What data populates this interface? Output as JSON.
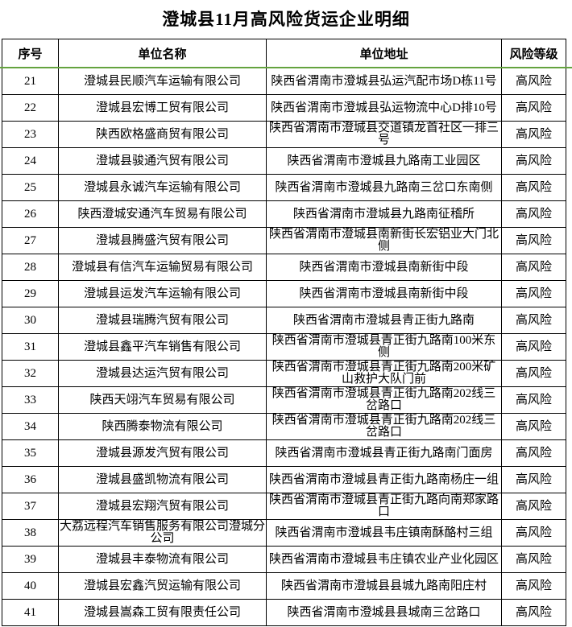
{
  "page": {
    "title": "澄城县11月高风险货运企业明细"
  },
  "colors": {
    "border": "#000000",
    "text": "#000000",
    "background": "#ffffff",
    "pane_divider_green": "#64a33e"
  },
  "table": {
    "headers": {
      "no": "序号",
      "name": "单位名称",
      "addr": "单位地址",
      "risk": "风险等级"
    },
    "rows": [
      {
        "no": "21",
        "name": "澄城县民顺汽车运输有限公司",
        "addr": "陕西省渭南市澄城县弘运汽配市场D栋11号",
        "risk": "高风险"
      },
      {
        "no": "22",
        "name": "澄城县宏博工贸有限公司",
        "addr": "陕西省渭南市澄城县弘运物流中心D排10号",
        "risk": "高风险"
      },
      {
        "no": "23",
        "name": "陕西欧格盛商贸有限公司",
        "addr": "陕西省渭南市澄城县交道镇龙首社区一排三号",
        "risk": "高风险"
      },
      {
        "no": "24",
        "name": "澄城县骏通汽贸有限公司",
        "addr": "陕西省渭南市澄城县九路南工业园区",
        "risk": "高风险"
      },
      {
        "no": "25",
        "name": "澄城县永诚汽车运输有限公司",
        "addr": "陕西省渭南市澄城县九路南三岔口东南侧",
        "risk": "高风险"
      },
      {
        "no": "26",
        "name": "陕西澄城安通汽车贸易有限公司",
        "addr": "陕西省渭南市澄城县九路南征稽所",
        "risk": "高风险"
      },
      {
        "no": "27",
        "name": "澄城县腾盛汽贸有限公司",
        "addr": "陕西省渭南市澄城县南新街长宏铝业大门北侧",
        "risk": "高风险"
      },
      {
        "no": "28",
        "name": "澄城县有信汽车运输贸易有限公司",
        "addr": "陕西省渭南市澄城县南新街中段",
        "risk": "高风险"
      },
      {
        "no": "29",
        "name": "澄城县运发汽车运输有限公司",
        "addr": "陕西省渭南市澄城县南新街中段",
        "risk": "高风险"
      },
      {
        "no": "30",
        "name": "澄城县瑞腾汽贸有限公司",
        "addr": "陕西省渭南市澄城县青正街九路南",
        "risk": "高风险"
      },
      {
        "no": "31",
        "name": "澄城县鑫平汽车销售有限公司",
        "addr": "陕西省渭南市澄城县青正街九路南100米东侧",
        "risk": "高风险"
      },
      {
        "no": "32",
        "name": "澄城县达运汽贸有限公司",
        "addr": "陕西省渭南市澄城县青正街九路南200米矿山救护大队门前",
        "risk": "高风险"
      },
      {
        "no": "33",
        "name": "陕西天翊汽车贸易有限公司",
        "addr": "陕西省渭南市澄城县青正街九路南202线三岔路口",
        "risk": "高风险"
      },
      {
        "no": "34",
        "name": "陕西腾泰物流有限公司",
        "addr": "陕西省渭南市澄城县青正街九路南202线三岔路口",
        "risk": "高风险"
      },
      {
        "no": "35",
        "name": "澄城县源发汽贸有限公司",
        "addr": "陕西省渭南市澄城县青正街九路南门面房",
        "risk": "高风险"
      },
      {
        "no": "36",
        "name": "澄城县盛凯物流有限公司",
        "addr": "陕西省渭南市澄城县青正街九路南杨庄一组",
        "risk": "高风险"
      },
      {
        "no": "37",
        "name": "澄城县宏翔汽贸有限公司",
        "addr": "陕西省渭南市澄城县青正街九路向南郑家路口",
        "risk": "高风险"
      },
      {
        "no": "38",
        "name": "大荔远程汽车销售服务有限公司澄城分公司",
        "addr": "陕西省渭南市澄城县韦庄镇南酥酪村三组",
        "risk": "高风险"
      },
      {
        "no": "39",
        "name": "澄城县丰泰物流有限公司",
        "addr": "陕西省渭南市澄城县韦庄镇农业产业化园区",
        "risk": "高风险"
      },
      {
        "no": "40",
        "name": "澄城县宏鑫汽贸运输有限公司",
        "addr": "陕西省渭南市澄城县县城九路南阳庄村",
        "risk": "高风险"
      },
      {
        "no": "41",
        "name": "澄城县嵩森工贸有限责任公司",
        "addr": "陕西省渭南市澄城县县城南三岔路口",
        "risk": "高风险"
      }
    ]
  }
}
